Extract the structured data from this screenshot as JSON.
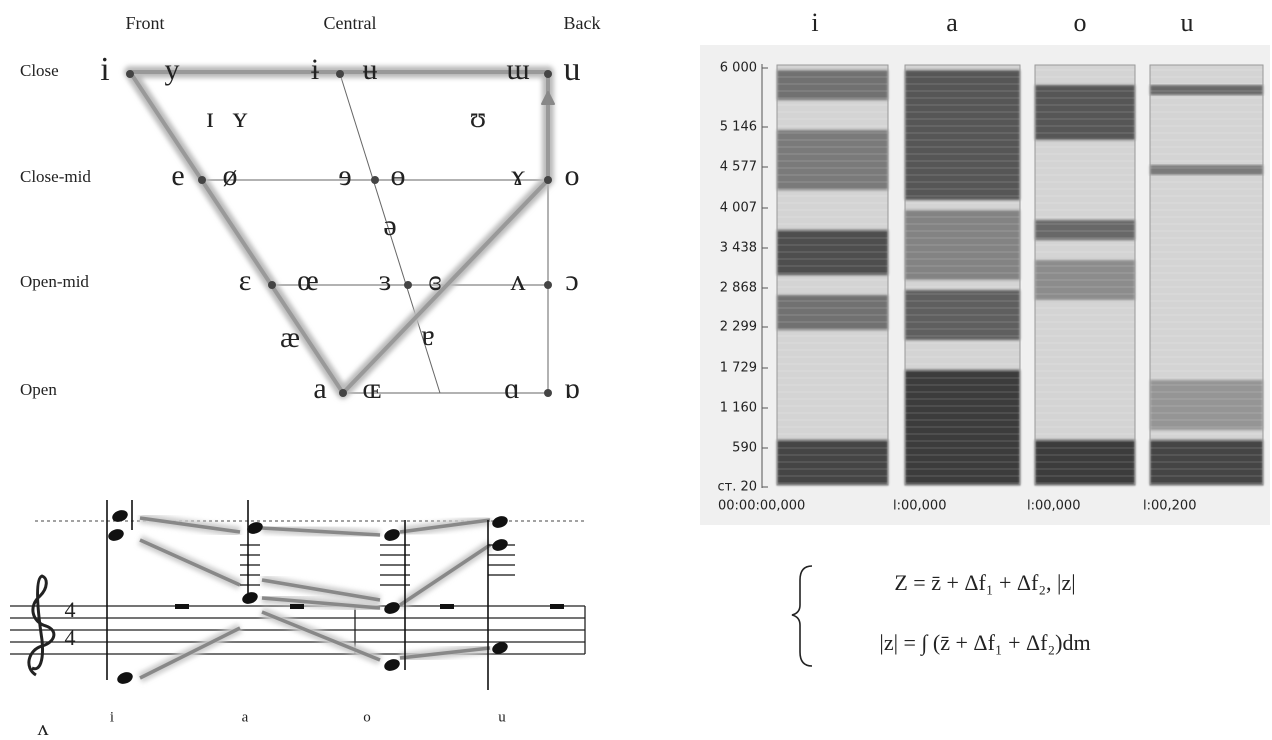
{
  "vowel_chart": {
    "columns": [
      "Front",
      "Central",
      "Back"
    ],
    "rows": [
      "Close",
      "Close-mid",
      "Open-mid",
      "Open"
    ],
    "symbols": [
      "i",
      "y",
      "ɨ",
      "ʉ",
      "ɯ",
      "u",
      "ɪ",
      "ʏ",
      "ʊ",
      "e",
      "ø",
      "ɘ",
      "ɵ",
      "ɤ",
      "o",
      "ə",
      "ɛ",
      "œ",
      "ɜ",
      "ɞ",
      "ʌ",
      "ɔ",
      "æ",
      "ɐ",
      "a",
      "ɶ",
      "ɑ",
      "ɒ"
    ]
  },
  "spectrogram": {
    "vowels": [
      "i",
      "a",
      "o",
      "u"
    ],
    "frequency_ticks": [
      "6 000",
      "5 146",
      "4 577",
      "4 007",
      "3 438",
      "2 868",
      "2 299",
      "1 729",
      "1 160",
      "590",
      "ст. 20"
    ],
    "time_labels": [
      "00:00:00,000",
      "l:00,000",
      "l:00,000",
      "l:00,200"
    ]
  },
  "notation": {
    "time_signature": [
      "4",
      "4"
    ],
    "labels": [
      "ʌ",
      "i",
      "a",
      "o",
      "u"
    ]
  },
  "formula": {
    "lines": [
      "Z =  z̄ + Δf₁ + Δf₂, |z|",
      "|z| = ∫ (z̄ + Δf₁ + Δf₂)dm"
    ]
  }
}
